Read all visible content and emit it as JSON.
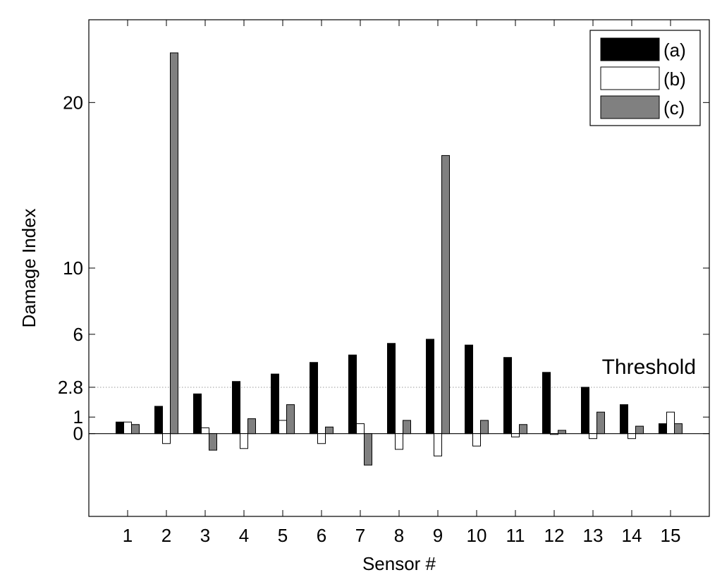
{
  "chart_data": {
    "type": "bar",
    "xlabel": "Sensor #",
    "ylabel": "Damage Index",
    "categories": [
      "1",
      "2",
      "3",
      "4",
      "5",
      "6",
      "7",
      "8",
      "9",
      "10",
      "11",
      "12",
      "13",
      "14",
      "15"
    ],
    "ylim": [
      -5,
      25
    ],
    "yticks": [
      0,
      1,
      2.8,
      6,
      10,
      20
    ],
    "ytick_labels": [
      "0",
      "1",
      "2.8",
      "6",
      "10",
      "20"
    ],
    "grid": false,
    "legend_position": "top-right",
    "threshold": {
      "value": 2.8,
      "label": "Threshold",
      "style": "dotted"
    },
    "series": [
      {
        "name": "(a)",
        "color": "#000000",
        "values": [
          0.7,
          1.65,
          2.4,
          3.15,
          3.6,
          4.3,
          4.75,
          5.45,
          5.7,
          5.35,
          4.6,
          3.7,
          2.8,
          1.75,
          0.6
        ]
      },
      {
        "name": "(b)",
        "color": "#ffffff",
        "values": [
          0.7,
          -0.6,
          0.35,
          -0.9,
          0.8,
          -0.6,
          0.6,
          -0.95,
          -1.35,
          -0.75,
          -0.2,
          -0.05,
          -0.3,
          -0.3,
          1.3
        ]
      },
      {
        "name": "(c)",
        "color": "#808080",
        "values": [
          0.55,
          23.0,
          -1.0,
          0.9,
          1.75,
          0.4,
          -1.9,
          0.8,
          16.8,
          0.8,
          0.55,
          0.2,
          1.3,
          0.45,
          0.6
        ]
      }
    ]
  }
}
